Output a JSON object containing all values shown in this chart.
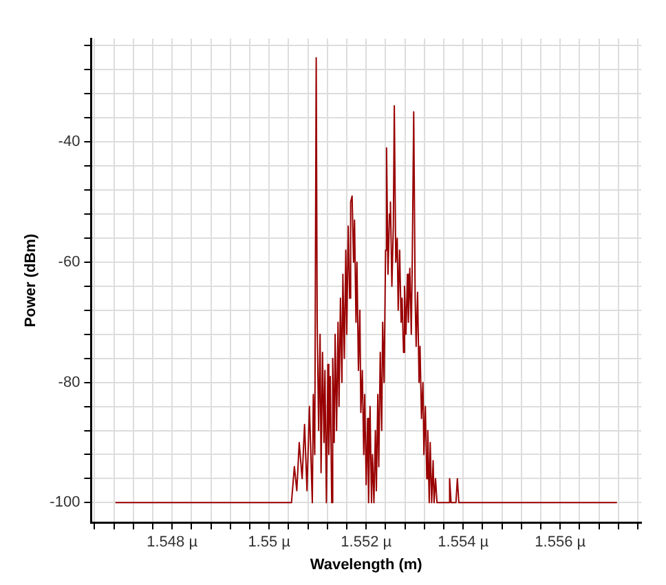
{
  "chart_data": {
    "type": "line",
    "xlabel": "Wavelength (m)",
    "ylabel": "Power (dBm)",
    "grid": true,
    "legend": false,
    "marker": "none",
    "line_style": "solid",
    "xlim": [
      1.54633,
      1.55767
    ],
    "ylim": [
      -103.3,
      -22.8
    ],
    "xticks": [
      {
        "value": 1.5464,
        "label": null
      },
      {
        "value": 1.5468,
        "label": null
      },
      {
        "value": 1.5472,
        "label": null
      },
      {
        "value": 1.5476,
        "label": null
      },
      {
        "value": 1.548,
        "label": "1.548 µ"
      },
      {
        "value": 1.5484,
        "label": null
      },
      {
        "value": 1.5488,
        "label": null
      },
      {
        "value": 1.5492,
        "label": null
      },
      {
        "value": 1.5496,
        "label": null
      },
      {
        "value": 1.55,
        "label": "1.55 µ"
      },
      {
        "value": 1.5504,
        "label": null
      },
      {
        "value": 1.5508,
        "label": null
      },
      {
        "value": 1.5512,
        "label": null
      },
      {
        "value": 1.5516,
        "label": null
      },
      {
        "value": 1.552,
        "label": "1.552 µ"
      },
      {
        "value": 1.5524,
        "label": null
      },
      {
        "value": 1.5528,
        "label": null
      },
      {
        "value": 1.5532,
        "label": null
      },
      {
        "value": 1.5536,
        "label": null
      },
      {
        "value": 1.554,
        "label": "1.554 µ"
      },
      {
        "value": 1.5544,
        "label": null
      },
      {
        "value": 1.5548,
        "label": null
      },
      {
        "value": 1.5552,
        "label": null
      },
      {
        "value": 1.5556,
        "label": null
      },
      {
        "value": 1.556,
        "label": "1.556 µ"
      },
      {
        "value": 1.5564,
        "label": null
      },
      {
        "value": 1.5568,
        "label": null
      },
      {
        "value": 1.5572,
        "label": null
      },
      {
        "value": 1.5576,
        "label": null
      }
    ],
    "yticks": [
      -100,
      {
        "value": -96,
        "label": null
      },
      {
        "value": -92,
        "label": null
      },
      {
        "value": -88,
        "label": null
      },
      {
        "value": -84,
        "label": null
      },
      -80,
      {
        "value": -76,
        "label": null
      },
      {
        "value": -72,
        "label": null
      },
      {
        "value": -68,
        "label": null
      },
      {
        "value": -64,
        "label": null
      },
      -60,
      {
        "value": -56,
        "label": null
      },
      {
        "value": -52,
        "label": null
      },
      {
        "value": -48,
        "label": null
      },
      {
        "value": -44,
        "label": null
      },
      -40,
      {
        "value": -36,
        "label": null
      },
      {
        "value": -32,
        "label": null
      },
      {
        "value": -28,
        "label": null
      },
      {
        "value": -24,
        "label": null
      }
    ],
    "series": [
      {
        "color": "#990000",
        "x": [
          1.54683,
          1.55046,
          1.55052,
          1.55057,
          1.55062,
          1.55068,
          1.55073,
          1.55078,
          1.55083,
          1.55089,
          1.55091,
          1.55094,
          1.55097,
          1.55099,
          1.55102,
          1.55105,
          1.55107,
          1.5511,
          1.55113,
          1.55115,
          1.55118,
          1.55121,
          1.55123,
          1.55126,
          1.55129,
          1.55131,
          1.55134,
          1.55136,
          1.55139,
          1.55142,
          1.55144,
          1.55147,
          1.5515,
          1.55152,
          1.55155,
          1.55158,
          1.5516,
          1.55163,
          1.55166,
          1.55168,
          1.55171,
          1.55174,
          1.55176,
          1.55179,
          1.55181,
          1.55184,
          1.55187,
          1.55189,
          1.55192,
          1.55195,
          1.55197,
          1.552,
          1.55203,
          1.55205,
          1.55208,
          1.55211,
          1.55213,
          1.55216,
          1.55219,
          1.55221,
          1.55224,
          1.55226,
          1.55229,
          1.55232,
          1.55234,
          1.55237,
          1.5524,
          1.55242,
          1.55245,
          1.55248,
          1.5525,
          1.55253,
          1.55256,
          1.55258,
          1.55261,
          1.55264,
          1.55266,
          1.55269,
          1.55272,
          1.55274,
          1.55277,
          1.55279,
          1.55282,
          1.55285,
          1.55287,
          1.5529,
          1.55293,
          1.55295,
          1.55298,
          1.55301,
          1.55303,
          1.55306,
          1.55309,
          1.55311,
          1.55314,
          1.55317,
          1.55319,
          1.55322,
          1.55325,
          1.55327,
          1.5533,
          1.55332,
          1.55335,
          1.55338,
          1.5534,
          1.55343,
          1.55346,
          1.5537,
          1.55372,
          1.55375,
          1.55385,
          1.55388,
          1.55391,
          1.55717
        ],
        "values": [
          -100,
          -100,
          -94,
          -98,
          -90,
          -96,
          -87,
          -98,
          -84,
          -100,
          -82,
          -92,
          -26,
          -70,
          -88,
          -72,
          -95,
          -75,
          -90,
          -78,
          -100,
          -77,
          -92,
          -79,
          -100,
          -76,
          -90,
          -72,
          -88,
          -70,
          -84,
          -66,
          -80,
          -62,
          -76,
          -58,
          -72,
          -54,
          -66,
          -50,
          -49,
          -60,
          -53,
          -70,
          -60,
          -78,
          -68,
          -85,
          -78,
          -92,
          -82,
          -97,
          -86,
          -100,
          -84,
          -100,
          -92,
          -100,
          -88,
          -98,
          -82,
          -94,
          -75,
          -88,
          -70,
          -80,
          -58,
          -41,
          -62,
          -52,
          -50,
          -64,
          -54,
          -34,
          -60,
          -56,
          -68,
          -58,
          -70,
          -66,
          -75,
          -64,
          -72,
          -62,
          -70,
          -61,
          -72,
          -60,
          -35,
          -66,
          -74,
          -65,
          -80,
          -74,
          -86,
          -80,
          -92,
          -84,
          -96,
          -88,
          -100,
          -90,
          -100,
          -93,
          -100,
          -96,
          -100,
          -100,
          -96,
          -100,
          -100,
          -96,
          -100,
          -100
        ]
      }
    ]
  }
}
